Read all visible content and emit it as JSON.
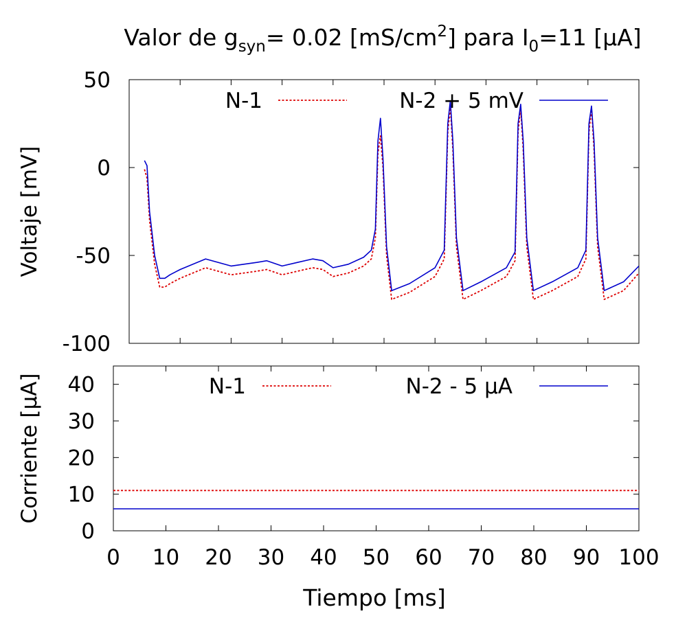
{
  "figure": {
    "title": {
      "prefix": "Valor de g",
      "sub1": "syn",
      "mid": "= 0.02 [mS/cm",
      "sup": "2",
      "mid2": "] para I",
      "sub2": "0",
      "suffix": "=11 [μA]"
    },
    "xlabel": "Tiempo [ms]"
  },
  "colors": {
    "n1": "#dd0000",
    "n2": "#0000cc",
    "axis": "#000000"
  },
  "chart_data": [
    {
      "type": "line",
      "ylabel": "Voltaje [mV]",
      "xlim": [
        0,
        100
      ],
      "ylim": [
        -100,
        50
      ],
      "xticks": [
        0,
        10,
        20,
        30,
        40,
        50,
        60,
        70,
        80,
        90,
        100
      ],
      "yticks": [
        -100,
        -50,
        0,
        50
      ],
      "ytick_labels": [
        "-100",
        "-50",
        "0",
        "50"
      ],
      "legend_position": "top",
      "grid": false,
      "series": [
        {
          "name": "N-1",
          "style": "dotted",
          "x": [
            3,
            3.5,
            4,
            5,
            6,
            7,
            8,
            10,
            15,
            20,
            25,
            27,
            30,
            33,
            36,
            38,
            40,
            43,
            46,
            47.5,
            48.3,
            48.8,
            49.3,
            49.8,
            50.5,
            51.5,
            55,
            60,
            61.8,
            62.5,
            63,
            63.5,
            64.2,
            65.5,
            69,
            74,
            75.7,
            76.3,
            76.8,
            77.3,
            78,
            79.3,
            83,
            88,
            89.6,
            90.2,
            90.7,
            91.2,
            91.9,
            93.2,
            97,
            100
          ],
          "y": [
            -1,
            -6,
            -30,
            -55,
            -68,
            -68,
            -66,
            -63,
            -57,
            -61,
            -59,
            -58,
            -61,
            -59,
            -57,
            -58,
            -62,
            -60,
            -56,
            -52,
            -40,
            8,
            18,
            0,
            -50,
            -75,
            -71,
            -62,
            -52,
            20,
            35,
            10,
            -45,
            -75,
            -70,
            -62,
            -53,
            20,
            34,
            10,
            -45,
            -75,
            -70,
            -62,
            -52,
            20,
            34,
            10,
            -45,
            -75,
            -70,
            -60
          ]
        },
        {
          "name": "N-2 + 5 mV",
          "style": "solid",
          "x": [
            3,
            3.5,
            4,
            5,
            6,
            7,
            8,
            10,
            15,
            20,
            25,
            27,
            30,
            33,
            36,
            38,
            40,
            43,
            46,
            47.5,
            48.3,
            48.8,
            49.3,
            49.8,
            50.5,
            51.5,
            55,
            60,
            61.8,
            62.5,
            63,
            63.5,
            64.2,
            65.5,
            69,
            74,
            75.7,
            76.3,
            76.8,
            77.3,
            78,
            79.3,
            83,
            88,
            89.6,
            90.2,
            90.7,
            91.2,
            91.9,
            93.2,
            97,
            100
          ],
          "y": [
            4,
            1,
            -25,
            -50,
            -63,
            -63,
            -61,
            -58,
            -52,
            -56,
            -54,
            -53,
            -56,
            -54,
            -52,
            -53,
            -57,
            -55,
            -51,
            -47,
            -35,
            15,
            28,
            5,
            -45,
            -70,
            -66,
            -57,
            -47,
            25,
            38,
            15,
            -40,
            -70,
            -65,
            -57,
            -48,
            25,
            36,
            15,
            -40,
            -70,
            -65,
            -57,
            -47,
            25,
            35,
            15,
            -40,
            -70,
            -65,
            -56
          ]
        }
      ]
    },
    {
      "type": "line",
      "ylabel": "Corriente [μA]",
      "xlim": [
        0,
        100
      ],
      "ylim": [
        0,
        45
      ],
      "xticks": [
        0,
        10,
        20,
        30,
        40,
        50,
        60,
        70,
        80,
        90,
        100
      ],
      "xtick_labels": [
        "0",
        "10",
        "20",
        "30",
        "40",
        "50",
        "60",
        "70",
        "80",
        "90",
        "100"
      ],
      "yticks": [
        0,
        10,
        20,
        30,
        40
      ],
      "ytick_labels": [
        "0",
        "10",
        "20",
        "30",
        "40"
      ],
      "legend_position": "top",
      "grid": false,
      "series": [
        {
          "name": "N-1",
          "style": "dotted",
          "x": [
            0,
            100
          ],
          "y": [
            11,
            11
          ]
        },
        {
          "name": "N-2 - 5 μA",
          "style": "solid",
          "x": [
            0,
            100
          ],
          "y": [
            6,
            6
          ]
        }
      ]
    }
  ]
}
